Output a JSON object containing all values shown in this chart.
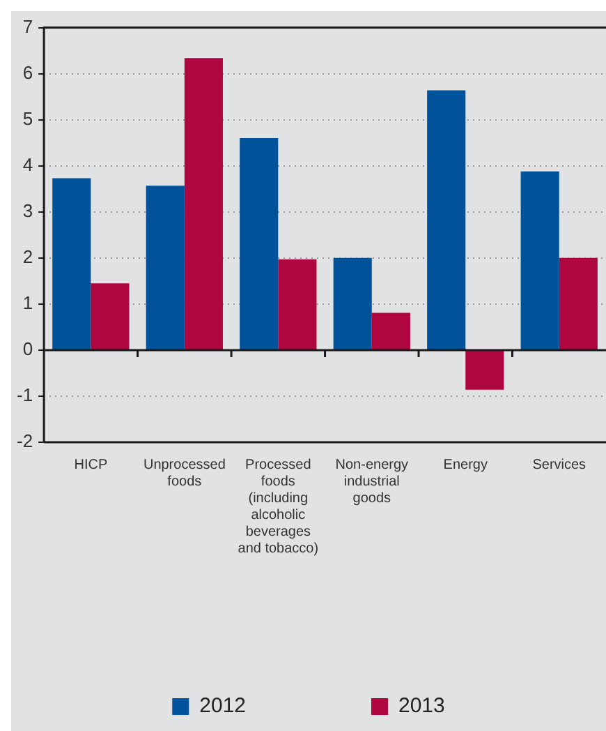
{
  "chart_data": {
    "type": "bar",
    "categories": [
      "HICP",
      "Unprocessed foods",
      "Processed foods (including alcoholic beverages and tobacco)",
      "Non-energy industrial goods",
      "Energy",
      "Services"
    ],
    "series": [
      {
        "name": "2012",
        "color": "#00529b",
        "values": [
          3.73,
          3.57,
          4.6,
          2.0,
          5.64,
          3.88
        ]
      },
      {
        "name": "2013",
        "color": "#b0063f",
        "values": [
          1.45,
          6.34,
          1.97,
          0.81,
          -0.86,
          2.0
        ]
      }
    ],
    "ylim": [
      -2,
      7
    ],
    "yticks": [
      -2,
      -1,
      0,
      1,
      2,
      3,
      4,
      5,
      6,
      7
    ],
    "grid": "y",
    "legend": "bottom"
  }
}
